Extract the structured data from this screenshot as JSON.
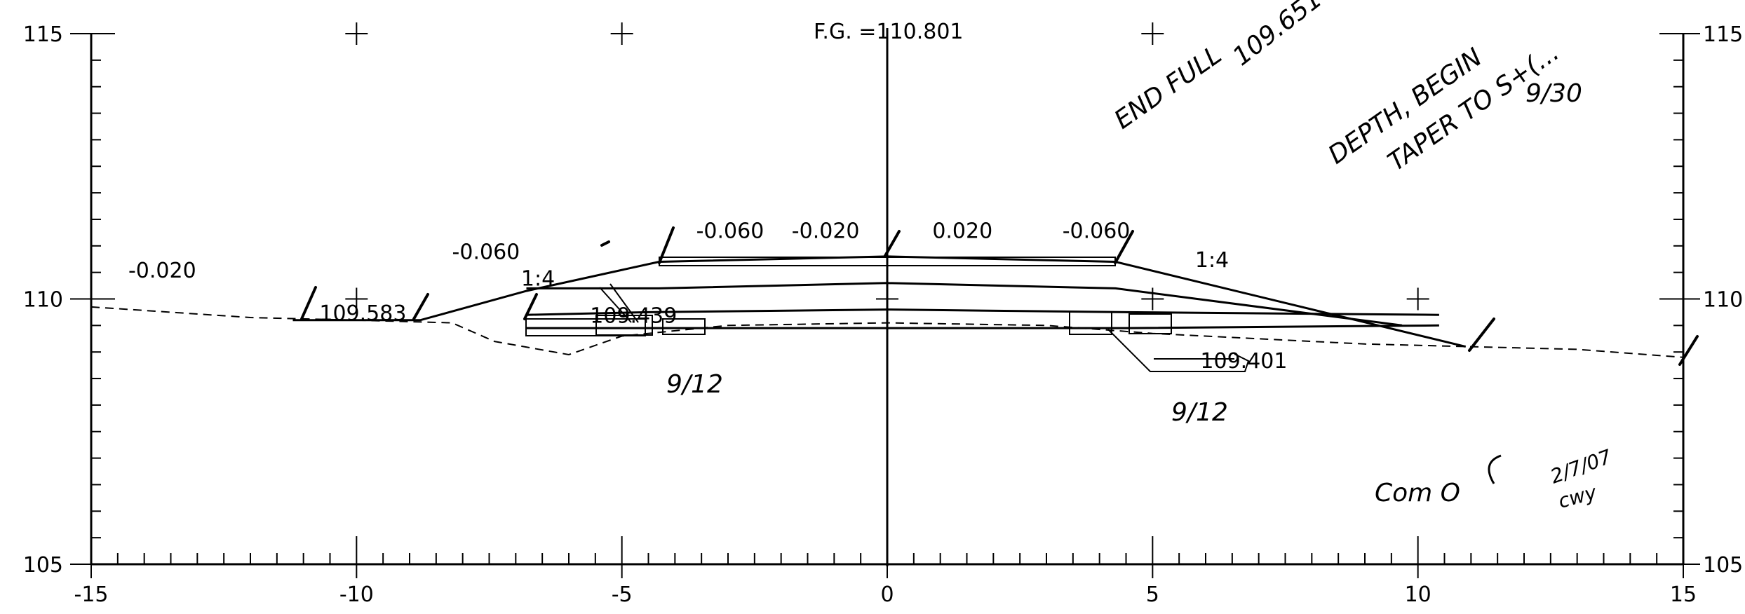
{
  "chart_data": {
    "type": "line",
    "title": "",
    "xlabel": "",
    "ylabel": "",
    "xlim": [
      -15,
      15
    ],
    "ylim": [
      105,
      115
    ],
    "x_ticks": [
      "-15",
      "-10",
      "-5",
      "0",
      "5",
      "10",
      "15"
    ],
    "y_ticks_left": [
      "115",
      "110",
      "105"
    ],
    "y_ticks_right": [
      "115",
      "110",
      "105"
    ],
    "grid_marks": [
      [
        -10,
        115
      ],
      [
        -5,
        115
      ],
      [
        5,
        115
      ],
      [
        -10,
        110
      ],
      [
        0,
        110
      ],
      [
        5,
        110
      ],
      [
        10,
        110
      ]
    ],
    "series": [
      {
        "role": "existing-ground",
        "style": "dashed",
        "x": [
          -15,
          -12,
          -10,
          -8.2,
          -7.4,
          -6,
          -5,
          -3,
          0,
          3,
          5,
          7,
          9,
          11,
          13,
          15
        ],
        "y": [
          109.85,
          109.65,
          109.6,
          109.55,
          109.2,
          108.95,
          109.3,
          109.5,
          109.55,
          109.5,
          109.35,
          109.25,
          109.15,
          109.1,
          109.05,
          108.9
        ]
      },
      {
        "role": "finished-grade",
        "style": "solid",
        "x": [
          -11.2,
          -8.8,
          -6.8,
          -4.3,
          0,
          4.3,
          10.9
        ],
        "y": [
          109.6,
          109.6,
          110.15,
          110.7,
          110.8,
          110.7,
          109.1
        ]
      },
      {
        "role": "pavement-bottom",
        "style": "solid",
        "x": [
          -6.8,
          -4.3,
          0,
          4.3,
          9.7
        ],
        "y": [
          110.2,
          110.2,
          110.3,
          110.2,
          109.5
        ]
      },
      {
        "role": "subbase-top",
        "style": "solid",
        "x": [
          -6.8,
          -4.5,
          0,
          4.5,
          10.4
        ],
        "y": [
          109.7,
          109.75,
          109.8,
          109.75,
          109.7
        ]
      },
      {
        "role": "subbase-bottom",
        "style": "solid",
        "x": [
          -6.8,
          -4.5,
          0,
          4.5,
          10.4
        ],
        "y": [
          109.45,
          109.45,
          109.45,
          109.45,
          109.5
        ]
      }
    ],
    "annotations": {
      "fg_label": "F.G. =110.801",
      "slopes": [
        {
          "text": "-0.020",
          "x": -14.3,
          "y": 110.4
        },
        {
          "text": "-0.060",
          "x": -8.2,
          "y": 110.75
        },
        {
          "text": "1:4",
          "x": -6.9,
          "y": 110.25
        },
        {
          "text": "-0.060",
          "x": -3.6,
          "y": 111.15
        },
        {
          "text": "-0.020",
          "x": -1.8,
          "y": 111.15
        },
        {
          "text": "0.020",
          "x": 0.85,
          "y": 111.15
        },
        {
          "text": "-0.060",
          "x": 3.3,
          "y": 111.15
        },
        {
          "text": "1:4",
          "x": 5.8,
          "y": 110.6
        }
      ],
      "elevations": [
        {
          "text": "109.583",
          "x": -10.7,
          "y": 109.6
        },
        {
          "text": "109.439",
          "x": -5.6,
          "y": 109.55
        },
        {
          "text": "109.401",
          "x": 5.9,
          "y": 108.7
        }
      ]
    },
    "handwritten": {
      "note_line1": "END FULL",
      "note_line2": "DEPTH, BEGIN",
      "note_line3": "TAPER TO S+(...",
      "note_date": "9/30",
      "top_scrawl": "109.651",
      "left_date": "9/12",
      "right_date": "9/12",
      "bottom_note": "Com O",
      "bottom_date": "2/7/07",
      "initials": "cwy"
    }
  }
}
